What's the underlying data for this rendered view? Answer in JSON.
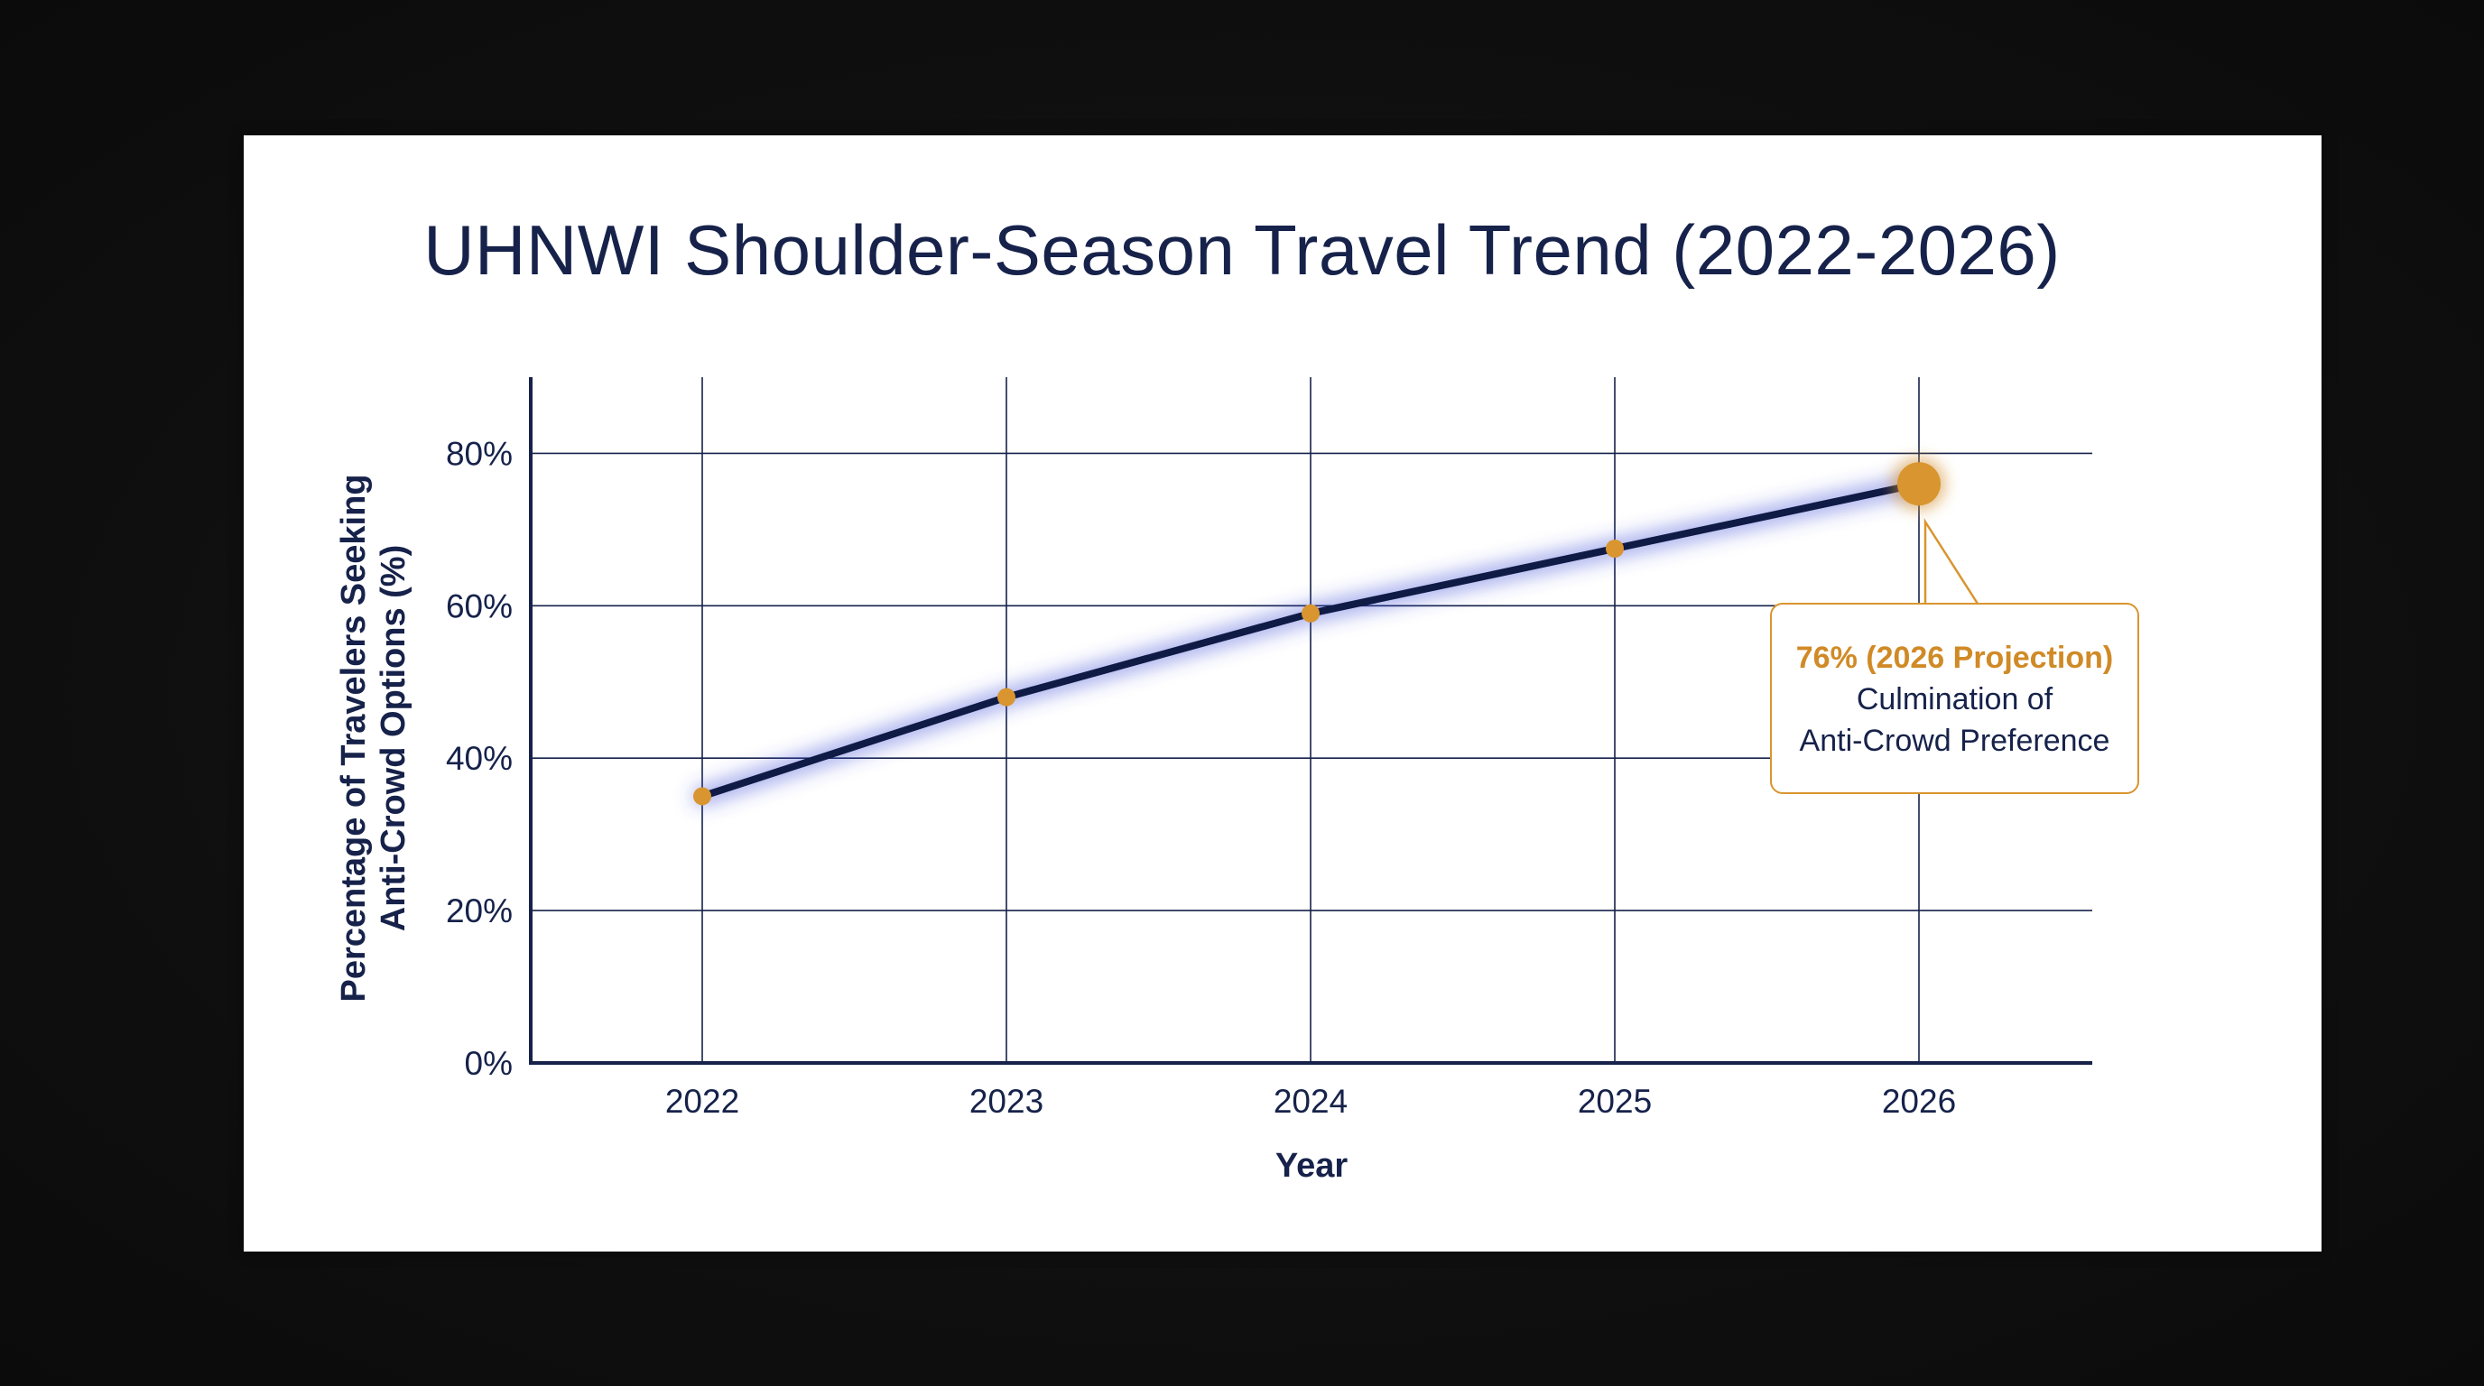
{
  "colors": {
    "line": "#0f1a45",
    "line_glow": "#3b4bd6",
    "marker": "#d9952f",
    "grid": "#16224a",
    "text": "#16224a",
    "callout_accent": "#d08a26"
  },
  "chart_data": {
    "type": "line",
    "title": "UHNWI Shoulder-Season Travel Trend (2022-2026)",
    "xlabel": "Year",
    "ylabel_lines": [
      "Percentage of Travelers Seeking",
      "Anti-Crowd Options (%)"
    ],
    "categories": [
      "2022",
      "2023",
      "2024",
      "2025",
      "2026"
    ],
    "series": [
      {
        "values": [
          35,
          48,
          59,
          67.5,
          76
        ]
      }
    ],
    "ylim": [
      0,
      90
    ],
    "yticks": [
      0,
      20,
      40,
      60,
      80
    ],
    "ytick_labels": [
      "0%",
      "20%",
      "40%",
      "60%",
      "80%"
    ],
    "grid": true,
    "highlight": {
      "category": "2026",
      "value": 76,
      "headline": "76% (2026 Projection)",
      "body_lines": [
        "Culmination of",
        "Anti-Crowd Preference"
      ]
    }
  }
}
